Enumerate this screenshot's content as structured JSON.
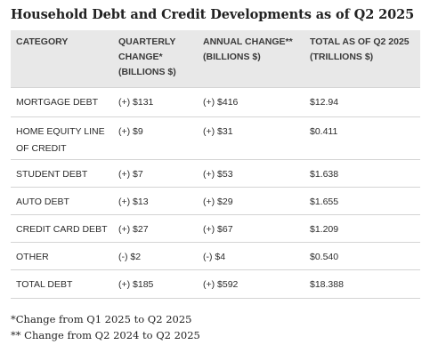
{
  "title": "Household Debt and Credit Developments as of Q2 2025",
  "table": {
    "headers": {
      "category": "CATEGORY",
      "quarterly_line1": "QUARTERLY",
      "quarterly_line2": "CHANGE*",
      "quarterly_line3": "(BILLIONS $)",
      "annual_line1": "ANNUAL CHANGE**",
      "annual_line2": "(BILLIONS $)",
      "total_line1": "TOTAL AS OF Q2 2025",
      "total_line2": "(TRILLIONS $)"
    },
    "rows": [
      {
        "category": "MORTGAGE DEBT",
        "quarterly": "(+) $131",
        "annual": "(+) $416",
        "total": "$12.94"
      },
      {
        "category_line1": "HOME EQUITY LINE",
        "category_line2": "OF CREDIT",
        "quarterly": "(+) $9",
        "annual": "(+) $31",
        "total": "$0.411"
      },
      {
        "category": "STUDENT DEBT",
        "quarterly": "(+) $7",
        "annual": "(+) $53",
        "total": "$1.638"
      },
      {
        "category": "AUTO DEBT",
        "quarterly": "(+) $13",
        "annual": "(+) $29",
        "total": "$1.655"
      },
      {
        "category": "CREDIT CARD DEBT",
        "quarterly": "(+) $27",
        "annual": "(+) $67",
        "total": "$1.209"
      },
      {
        "category": "OTHER",
        "quarterly": "(-) $2",
        "annual": "(-) $4",
        "total": "$0.540"
      },
      {
        "category": "TOTAL DEBT",
        "quarterly": "(+) $185",
        "annual": "(+) $592",
        "total": "$18.388"
      }
    ]
  },
  "footnotes": {
    "quarterly": "*Change from Q1 2025 to Q2 2025",
    "annual": "** Change from Q2 2024 to Q2 2025"
  }
}
